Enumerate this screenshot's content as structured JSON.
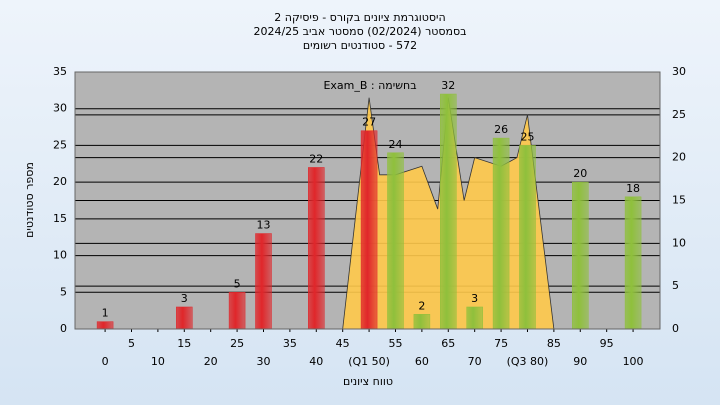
{
  "chart_data": {
    "type": "bar",
    "title": "היסטוגרמת ציונים בקורס - פיסיקה 2",
    "subtitle": "בסמסטר  (02/2024)  סמסטר אביב 2024/25",
    "subtitle2": "572 - סטודנטים רשומים",
    "annotation": "בחשימה : Exam_B",
    "ylabel": "מספר סטודנטים",
    "xlabel": "טווח ציונים",
    "x": [
      0,
      15,
      25,
      30,
      40,
      50,
      55,
      60,
      65,
      70,
      75,
      80,
      90,
      100
    ],
    "values": [
      1,
      3,
      5,
      13,
      22,
      27,
      24,
      2,
      32,
      3,
      26,
      25,
      20,
      18
    ],
    "colors": [
      "#e0262a",
      "#e0262a",
      "#e0262a",
      "#e0262a",
      "#e0262a",
      "#e0262a",
      "#8fc03c",
      "#8fc03c",
      "#8fc03c",
      "#8fc03c",
      "#8fc03c",
      "#8fc03c",
      "#8fc03c",
      "#8fc03c"
    ],
    "area": {
      "color": "#ffc94a",
      "axis": "y2",
      "x": [
        45,
        50,
        52,
        55,
        60,
        63,
        65,
        68,
        70,
        75,
        78,
        80,
        85
      ],
      "values": [
        0,
        27,
        18,
        18,
        19,
        14,
        27,
        15,
        20,
        19,
        20,
        25,
        0
      ]
    },
    "xlim": [
      -5.7,
      105.1
    ],
    "xticks": [
      0,
      5,
      10,
      15,
      20,
      25,
      30,
      35,
      40,
      45,
      {
        "value": 50,
        "label": "(Q1 50)"
      },
      55,
      60,
      65,
      70,
      75,
      {
        "value": 80,
        "label": "(Q3 80)"
      },
      85,
      90,
      95,
      100
    ],
    "ylim": [
      0,
      35
    ],
    "yticks": [
      0,
      5,
      10,
      15,
      20,
      25,
      30,
      35
    ],
    "y2lim": [
      0,
      30
    ],
    "y2ticks": [
      0,
      5,
      10,
      15,
      20,
      25,
      30
    ],
    "grid": true
  }
}
